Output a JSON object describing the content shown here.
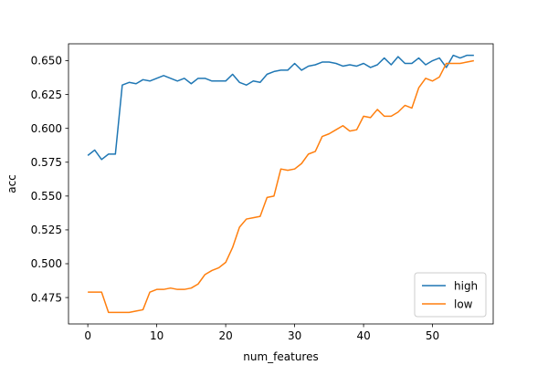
{
  "chart_data": {
    "type": "line",
    "title": "",
    "xlabel": "num_features",
    "ylabel": "acc",
    "xlim": [
      -2.8,
      58.8
    ],
    "ylim": [
      0.4555,
      0.6625
    ],
    "xticks": [
      0,
      10,
      20,
      30,
      40,
      50
    ],
    "yticks": [
      0.475,
      0.5,
      0.525,
      0.55,
      0.575,
      0.6,
      0.625,
      0.65
    ],
    "ytick_labels": [
      "0.475",
      "0.500",
      "0.525",
      "0.550",
      "0.575",
      "0.600",
      "0.625",
      "0.650"
    ],
    "grid": false,
    "legend_position": "lower-right",
    "x": [
      0,
      1,
      2,
      3,
      4,
      5,
      6,
      7,
      8,
      9,
      10,
      11,
      12,
      13,
      14,
      15,
      16,
      17,
      18,
      19,
      20,
      21,
      22,
      23,
      24,
      25,
      26,
      27,
      28,
      29,
      30,
      31,
      32,
      33,
      34,
      35,
      36,
      37,
      38,
      39,
      40,
      41,
      42,
      43,
      44,
      45,
      46,
      47,
      48,
      49,
      50,
      51,
      52,
      53,
      54,
      55,
      56
    ],
    "series": [
      {
        "name": "high",
        "color": "#1f77b4",
        "values": [
          0.58,
          0.584,
          0.577,
          0.581,
          0.581,
          0.632,
          0.634,
          0.633,
          0.636,
          0.635,
          0.637,
          0.639,
          0.637,
          0.635,
          0.637,
          0.633,
          0.637,
          0.637,
          0.635,
          0.635,
          0.635,
          0.64,
          0.634,
          0.632,
          0.635,
          0.634,
          0.64,
          0.642,
          0.643,
          0.643,
          0.648,
          0.643,
          0.646,
          0.647,
          0.649,
          0.649,
          0.648,
          0.646,
          0.647,
          0.646,
          0.648,
          0.645,
          0.647,
          0.652,
          0.647,
          0.653,
          0.648,
          0.648,
          0.652,
          0.647,
          0.65,
          0.652,
          0.645,
          0.654,
          0.652,
          0.654,
          0.654
        ]
      },
      {
        "name": "low",
        "color": "#ff7f0e",
        "values": [
          0.479,
          0.479,
          0.479,
          0.464,
          0.464,
          0.464,
          0.464,
          0.465,
          0.466,
          0.479,
          0.481,
          0.481,
          0.482,
          0.481,
          0.481,
          0.482,
          0.485,
          0.492,
          0.495,
          0.497,
          0.501,
          0.512,
          0.527,
          0.533,
          0.534,
          0.535,
          0.549,
          0.55,
          0.57,
          0.569,
          0.57,
          0.574,
          0.581,
          0.583,
          0.594,
          0.596,
          0.599,
          0.602,
          0.598,
          0.599,
          0.609,
          0.608,
          0.614,
          0.609,
          0.609,
          0.612,
          0.617,
          0.615,
          0.63,
          0.637,
          0.635,
          0.638,
          0.648,
          0.648,
          0.648,
          0.649,
          0.65
        ]
      }
    ]
  }
}
